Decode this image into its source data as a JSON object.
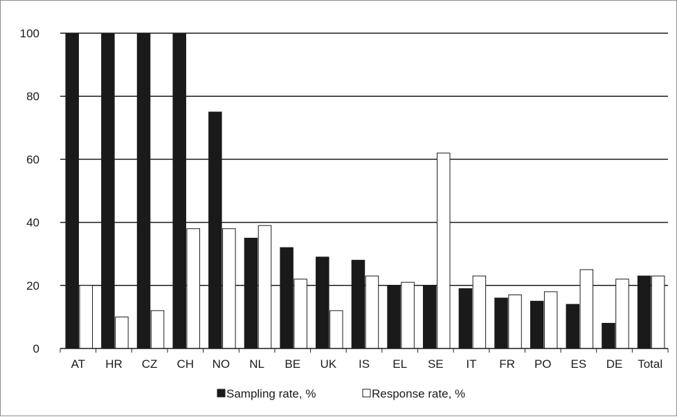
{
  "chart_data": {
    "type": "bar",
    "title": "",
    "xlabel": "",
    "ylabel": "",
    "ylim": [
      0,
      100
    ],
    "y_ticks": [
      0,
      20,
      40,
      60,
      80,
      100
    ],
    "grid": true,
    "legend_position": "bottom",
    "categories": [
      "AT",
      "HR",
      "CZ",
      "CH",
      "NO",
      "NL",
      "BE",
      "UK",
      "IS",
      "EL",
      "SE",
      "IT",
      "FR",
      "PO",
      "ES",
      "DE",
      "Total"
    ],
    "series": [
      {
        "name": "Sampling rate, %",
        "fill": "#1a1a1a",
        "values": [
          100,
          100,
          100,
          100,
          75,
          35,
          32,
          29,
          28,
          20,
          20,
          19,
          16,
          15,
          14,
          8,
          23
        ]
      },
      {
        "name": "Response rate, %",
        "fill": "#ffffff",
        "values": [
          20,
          10,
          12,
          38,
          38,
          39,
          22,
          12,
          23,
          21,
          62,
          23,
          17,
          18,
          25,
          22,
          23
        ]
      }
    ],
    "colors": {
      "axis": "#1a1a1a",
      "grid": "#1a1a1a",
      "frame": "#8c8c8c"
    }
  }
}
